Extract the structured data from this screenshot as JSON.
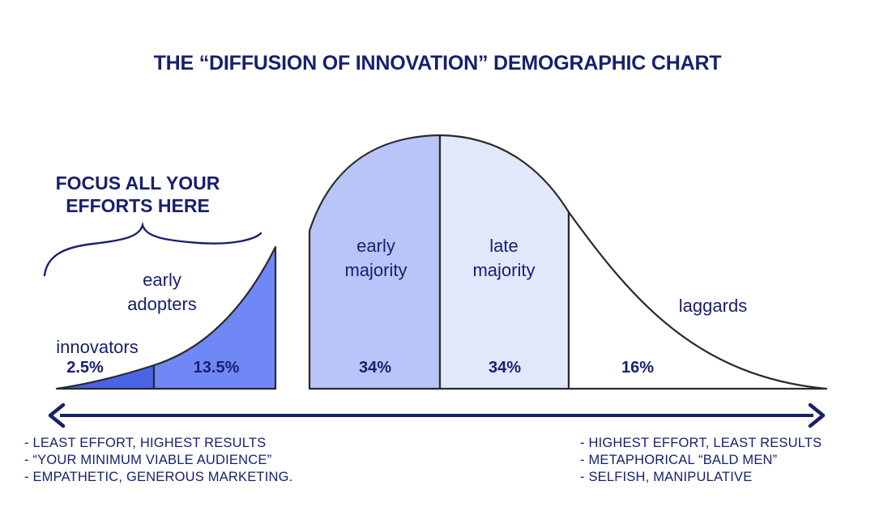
{
  "title": "THE “DIFFUSION OF INNOVATION” DEMOGRAPHIC CHART",
  "callout": {
    "line1": "FOCUS ALL YOUR",
    "line2": "EFFORTS HERE"
  },
  "segments": [
    {
      "id": "innovators",
      "name": "innovators",
      "name_lines": [
        "innovators"
      ],
      "percent": "2.5%",
      "share": 2.5,
      "color": "#4a64e8"
    },
    {
      "id": "early-adopters",
      "name": "early adopters",
      "name_lines": [
        "early",
        "adopters"
      ],
      "percent": "13.5%",
      "share": 13.5,
      "color": "#6f88f5"
    },
    {
      "id": "early-majority",
      "name": "early majority",
      "name_lines": [
        "early",
        "majority"
      ],
      "percent": "34%",
      "share": 34,
      "color": "#b9c5f8"
    },
    {
      "id": "late-majority",
      "name": "late majority",
      "name_lines": [
        "late",
        "majority"
      ],
      "percent": "34%",
      "share": 34,
      "color": "#e1e8fb"
    },
    {
      "id": "laggards",
      "name": "laggards",
      "name_lines": [
        "laggards"
      ],
      "percent": "16%",
      "share": 16,
      "color": "#ffffff"
    }
  ],
  "left_notes": [
    "- LEAST EFFORT, HIGHEST RESULTS",
    "- “YOUR MINIMUM VIABLE AUDIENCE”",
    "- EMPATHETIC, GENEROUS MARKETING."
  ],
  "right_notes": [
    "- HIGHEST EFFORT, LEAST RESULTS",
    "- METAPHORICAL “BALD MEN”",
    "- SELFISH, MANIPULATIVE"
  ],
  "colors": {
    "ink": "#18206e",
    "outline": "#2a2a2a"
  }
}
